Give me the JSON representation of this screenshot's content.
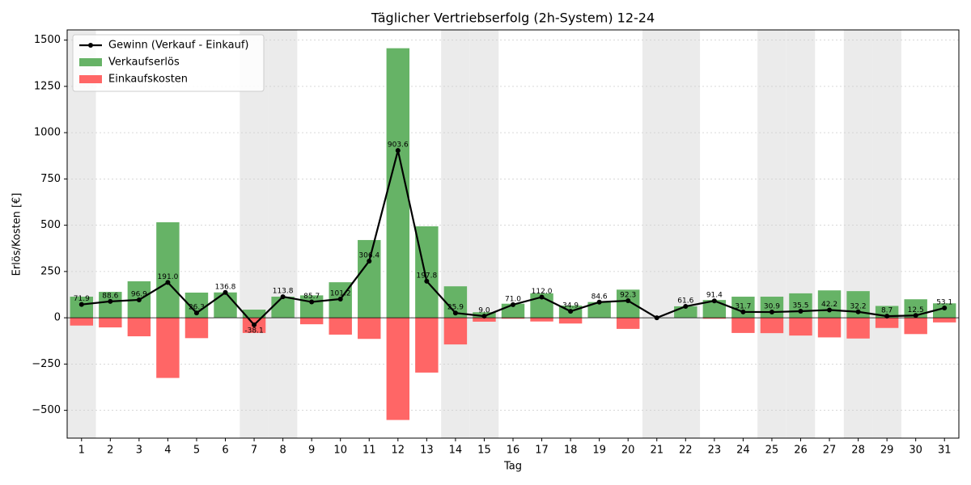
{
  "chart_data": {
    "type": "bar",
    "title": "Täglicher Vertriebserfolg (2h-System) 12-24",
    "x_label": "Tag",
    "y_label": "Erlös/Kosten [€]",
    "categories": [
      1,
      2,
      3,
      4,
      5,
      6,
      7,
      8,
      9,
      10,
      11,
      12,
      13,
      14,
      15,
      16,
      17,
      18,
      19,
      20,
      21,
      22,
      23,
      24,
      25,
      26,
      27,
      28,
      29,
      30,
      31
    ],
    "highlight_days": [
      1,
      7,
      8,
      14,
      15,
      21,
      22,
      25,
      26,
      28,
      29
    ],
    "highlight_color": "#ebebeb",
    "series": [
      {
        "name": "Gewinn (Verkauf - Einkauf)",
        "type": "line",
        "color": "#000000",
        "values": [
          71.9,
          88.6,
          96.9,
          191.0,
          26.3,
          136.8,
          -38.1,
          113.8,
          85.7,
          101.2,
          306.4,
          903.6,
          197.8,
          25.9,
          9.0,
          71.0,
          112.0,
          34.9,
          84.6,
          92.3,
          0,
          61.6,
          91.4,
          31.7,
          30.9,
          35.5,
          42.2,
          32.2,
          8.7,
          12.5,
          53.1
        ],
        "value_labels": [
          "71.9",
          "88.6",
          "96.9",
          "191.0",
          "26.3",
          "136.8",
          "-38.1",
          "113.8",
          "85.7",
          "101.2",
          "306.4",
          "903.6",
          "197.8",
          "25.9",
          "9.0",
          "71.0",
          "112.0",
          "34.9",
          "84.6",
          "92.3",
          null,
          "61.6",
          "91.4",
          "31.7",
          "30.9",
          "35.5",
          "42.2",
          "32.2",
          "8.7",
          "12.5",
          "53.1"
        ]
      },
      {
        "name": "Verkaufserlös",
        "type": "bar",
        "color": "#66b366",
        "values": [
          114,
          140,
          197,
          516,
          136,
          137,
          44,
          114,
          121,
          192,
          420,
          1456,
          494,
          170,
          30,
          76,
          132,
          66,
          85,
          152,
          0,
          62,
          96,
          114,
          114,
          132,
          148,
          144,
          64,
          100,
          78
        ]
      },
      {
        "name": "Einkaufskosten",
        "type": "bar",
        "color": "#ff6666",
        "values": [
          -42,
          -52,
          -100,
          -325,
          -110,
          0,
          -82,
          0,
          -35,
          -91,
          -114,
          -552,
          -296,
          -144,
          -21,
          -5,
          -20,
          -31,
          0,
          -60,
          0,
          0,
          -5,
          -82,
          -83,
          -96,
          -106,
          -112,
          -55,
          -88,
          -25
        ]
      }
    ],
    "ylim": [
      -650,
      1555
    ],
    "yticks": [
      {
        "value": -500,
        "label": "−500"
      },
      {
        "value": -250,
        "label": "−250"
      },
      0,
      250,
      500,
      750,
      1000,
      1250,
      1500
    ],
    "grid": true,
    "legend": "upper left"
  }
}
